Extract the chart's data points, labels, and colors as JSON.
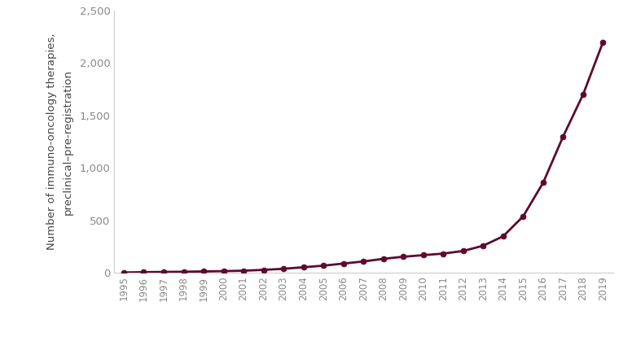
{
  "years": [
    1995,
    1996,
    1997,
    1998,
    1999,
    2000,
    2001,
    2002,
    2003,
    2004,
    2005,
    2006,
    2007,
    2008,
    2009,
    2010,
    2011,
    2012,
    2013,
    2014,
    2015,
    2016,
    2017,
    2018,
    2019
  ],
  "values": [
    5,
    8,
    10,
    12,
    15,
    18,
    22,
    30,
    40,
    55,
    70,
    90,
    110,
    135,
    155,
    170,
    185,
    210,
    260,
    350,
    540,
    860,
    1300,
    1700,
    2200
  ],
  "line_color": "#5c0a2e",
  "marker_color": "#5c0a2e",
  "ylabel_line1": "Number of immuno-oncology therapies,",
  "ylabel_line2": "preclinical–pre-registration",
  "ylim": [
    0,
    2500
  ],
  "yticks": [
    0,
    500,
    1000,
    1500,
    2000,
    2500
  ],
  "background_color": "#ffffff",
  "marker_size": 5,
  "line_width": 2.0,
  "tick_color": "#888888",
  "spine_color": "#cccccc",
  "label_fontsize": 9.5
}
